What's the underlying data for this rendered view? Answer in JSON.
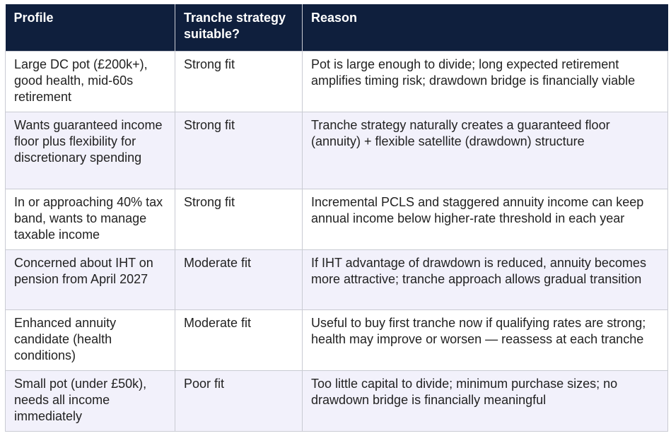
{
  "table": {
    "headers": {
      "profile": "Profile",
      "tranche": "Tranche strategy suitable?",
      "reason": "Reason"
    },
    "rows": [
      {
        "profile": "Large DC pot (£200k+), good health, mid-60s retirement",
        "fit": "Strong fit",
        "reason": "Pot is large enough to divide; long expected retirement amplifies timing risk; drawdown bridge is financially viable"
      },
      {
        "profile": "Wants guaranteed income floor plus flexibility for discretionary spending",
        "fit": "Strong fit",
        "reason": "Tranche strategy naturally creates a guaranteed floor (annuity) + flexible satellite (drawdown) structure"
      },
      {
        "profile": "In or approaching 40% tax band, wants to manage taxable income",
        "fit": "Strong fit",
        "reason": "Incremental PCLS and staggered annuity income can keep annual income below higher-rate threshold in each year"
      },
      {
        "profile": "Concerned about IHT on pension from April 2027",
        "fit": "Moderate fit",
        "reason": "If IHT advantage of drawdown is reduced, annuity becomes more attractive; tranche approach allows gradual transition"
      },
      {
        "profile": "Enhanced annuity candidate (health conditions)",
        "fit": "Moderate fit",
        "reason": "Useful to buy first tranche now if qualifying rates are strong; health may improve or worsen — reassess at each tranche"
      },
      {
        "profile": "Small pot (under £50k), needs all income immediately",
        "fit": "Poor fit",
        "reason": "Too little capital to divide; minimum purchase sizes; no drawdown bridge is financially meaningful"
      }
    ]
  }
}
